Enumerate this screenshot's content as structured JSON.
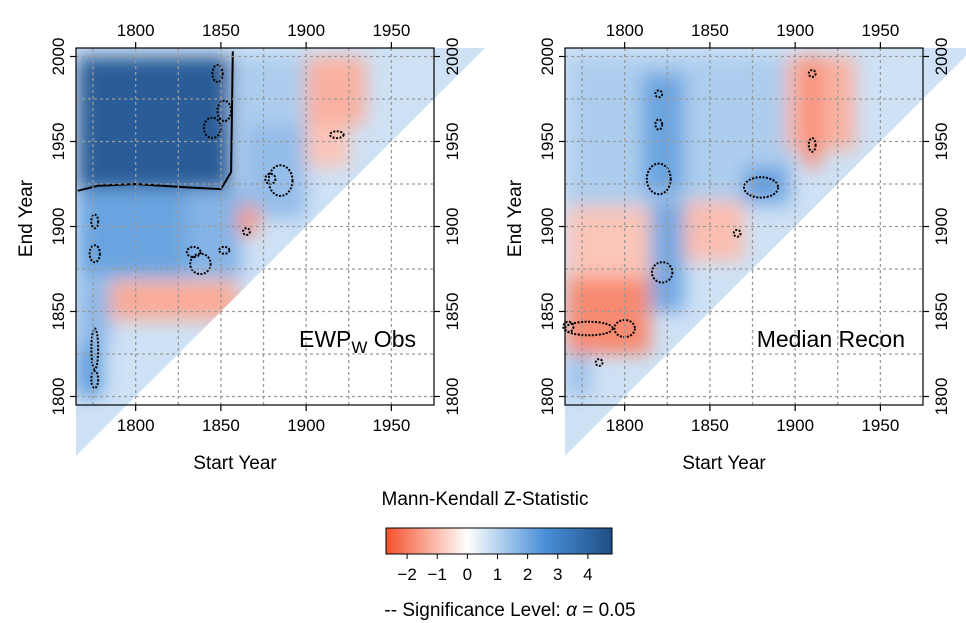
{
  "chart_data": [
    {
      "type": "heatmap",
      "label_main": "EWP",
      "label_sub": "W",
      "label_rest": " Obs",
      "xlabel": "Start Year",
      "ylabel": "End Year",
      "xlim": [
        1765,
        1975
      ],
      "ylim": [
        1795,
        2005
      ],
      "xticks": [
        "1800",
        "1850",
        "1900",
        "1950"
      ],
      "yticks": [
        "1800",
        "1850",
        "1900",
        "1950",
        "2000"
      ],
      "xtick_values": [
        1800,
        1850,
        1900,
        1950
      ],
      "ytick_values": [
        1800,
        1850,
        1900,
        1950,
        2000
      ],
      "grid": true,
      "z_regions": [
        {
          "x": [
            1766,
            1856
          ],
          "y": [
            1922,
            2000
          ],
          "z": 4.2
        },
        {
          "x": [
            1766,
            1830
          ],
          "y": [
            1870,
            1922
          ],
          "z": 1.8
        },
        {
          "x": [
            1830,
            1862
          ],
          "y": [
            1870,
            1922
          ],
          "z": 1.5
        },
        {
          "x": [
            1862,
            1900
          ],
          "y": [
            1905,
            1960
          ],
          "z": 1.3
        },
        {
          "x": [
            1856,
            1900
          ],
          "y": [
            1960,
            2000
          ],
          "z": 1.0
        },
        {
          "x": [
            1900,
            1935
          ],
          "y": [
            1960,
            2000
          ],
          "z": -1.2
        },
        {
          "x": [
            1900,
            1925
          ],
          "y": [
            1935,
            1960
          ],
          "z": -0.9
        },
        {
          "x": [
            1860,
            1872
          ],
          "y": [
            1895,
            1912
          ],
          "z": -1.6
        },
        {
          "x": [
            1785,
            1860
          ],
          "y": [
            1845,
            1868
          ],
          "z": -1.3
        },
        {
          "x": [
            1766,
            1785
          ],
          "y": [
            1830,
            1868
          ],
          "z": 1.4
        },
        {
          "x": [
            1766,
            1780
          ],
          "y": [
            1800,
            1830
          ],
          "z": 2.0
        }
      ]
    },
    {
      "type": "heatmap",
      "label_main": "Median Recon",
      "label_sub": "",
      "label_rest": "",
      "xlabel": "Start Year",
      "ylabel": "End Year",
      "xlim": [
        1765,
        1975
      ],
      "ylim": [
        1795,
        2005
      ],
      "xticks": [
        "1800",
        "1850",
        "1900",
        "1950"
      ],
      "yticks": [
        "1800",
        "1850",
        "1900",
        "1950",
        "2000"
      ],
      "xtick_values": [
        1800,
        1850,
        1900,
        1950
      ],
      "ytick_values": [
        1800,
        1850,
        1900,
        1950,
        2000
      ],
      "grid": true,
      "z_regions": [
        {
          "x": [
            1766,
            1900
          ],
          "y": [
            1910,
            2000
          ],
          "z": 1.0
        },
        {
          "x": [
            1810,
            1835
          ],
          "y": [
            1920,
            1990
          ],
          "z": 1.8
        },
        {
          "x": [
            1870,
            1895
          ],
          "y": [
            1915,
            1935
          ],
          "z": 1.9
        },
        {
          "x": [
            1895,
            1935
          ],
          "y": [
            1945,
            2000
          ],
          "z": -1.2
        },
        {
          "x": [
            1905,
            1915
          ],
          "y": [
            1935,
            2000
          ],
          "z": -1.8
        },
        {
          "x": [
            1766,
            1815
          ],
          "y": [
            1870,
            1912
          ],
          "z": -0.9
        },
        {
          "x": [
            1835,
            1870
          ],
          "y": [
            1880,
            1915
          ],
          "z": -1.0
        },
        {
          "x": [
            1815,
            1835
          ],
          "y": [
            1850,
            1915
          ],
          "z": 1.7
        },
        {
          "x": [
            1766,
            1815
          ],
          "y": [
            1825,
            1870
          ],
          "z": -1.8
        },
        {
          "x": [
            1766,
            1780
          ],
          "y": [
            1800,
            1825
          ],
          "z": 1.2
        }
      ]
    }
  ],
  "legend": {
    "title": "Mann-Kendall Z-Statistic",
    "min": -2.7,
    "max": 4.8,
    "tick_values": [
      -2,
      -1,
      0,
      1,
      2,
      3,
      4
    ],
    "tick_labels": [
      "−2",
      "−1",
      "0",
      "1",
      "2",
      "3",
      "4"
    ],
    "colors": {
      "neg": "#f4502a",
      "zero": "#ffffff",
      "mid": "#4a90d9",
      "pos": "#1f4e85"
    }
  },
  "significance": {
    "prefix": "-- Significance Level: ",
    "symbol": "α",
    "suffix": " = 0.05"
  }
}
